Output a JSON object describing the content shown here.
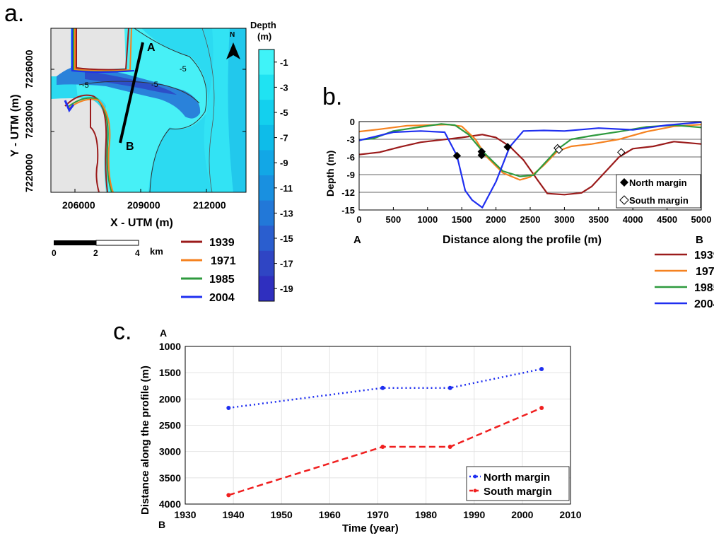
{
  "panel_labels": {
    "a": "a.",
    "b": "b.",
    "c": "c."
  },
  "map": {
    "xlabel": "X - UTM (m)",
    "ylabel": "Y - UTM (m)",
    "xticks": [
      "206000",
      "209000",
      "212000"
    ],
    "yticks": [
      "7226000",
      "7223000",
      "7220000"
    ],
    "profile_start": "A",
    "profile_end": "B",
    "contour_labels": [
      "-5",
      "-5",
      "-5"
    ],
    "north_arrow": "N",
    "colorbar_title": [
      "Depth",
      "(m)"
    ],
    "colorbar_ticks": [
      "-1",
      "-3",
      "-5",
      "-7",
      "-9",
      "-11",
      "-13",
      "-15",
      "-17",
      "-19"
    ],
    "colorbar_colors": [
      "#3ff3f8",
      "#1fe3f2",
      "#13d0ee",
      "#0ebce9",
      "#12a7e6",
      "#1990e0",
      "#2278d8",
      "#2a5ecf",
      "#2f45c4",
      "#2f2fbf"
    ],
    "scalebar": {
      "ticks": [
        "0",
        "2",
        "4"
      ],
      "unit": "km"
    },
    "land_color": "#e5e5e5",
    "sea_color": "#2cdaf1"
  },
  "legend_years": [
    "1939",
    "1971",
    "1985",
    "2004"
  ],
  "series_colors": {
    "1939": "#9b1b1b",
    "1971": "#f58220",
    "1985": "#2e9a3e",
    "2004": "#1f2ff0"
  },
  "chart_data": [
    {
      "id": "b",
      "type": "line",
      "xlabel": "Distance along the profile (m)",
      "ylabel": "Depth (m)",
      "xlim": [
        0,
        5000
      ],
      "ylim": [
        -15,
        0
      ],
      "xticks": [
        0,
        500,
        1000,
        1500,
        2000,
        2500,
        3000,
        3500,
        4000,
        4500,
        5000
      ],
      "yticks": [
        0,
        -3,
        -6,
        -9,
        -12,
        -15
      ],
      "grid": "horizontal",
      "end_labels": [
        "A",
        "B"
      ],
      "series": [
        {
          "name": "1939",
          "color": "#9b1b1b",
          "x": [
            0,
            300,
            600,
            900,
            1200,
            1500,
            1800,
            2000,
            2200,
            2400,
            2600,
            2750,
            3000,
            3250,
            3400,
            3600,
            3800,
            4000,
            4300,
            4600,
            5000
          ],
          "y": [
            -5.6,
            -5.2,
            -4.3,
            -3.5,
            -3.1,
            -2.7,
            -2.2,
            -2.7,
            -4.2,
            -6.5,
            -9.8,
            -12.2,
            -12.4,
            -12.1,
            -11.0,
            -8.5,
            -6.0,
            -4.6,
            -4.2,
            -3.4,
            -3.8
          ]
        },
        {
          "name": "1971",
          "color": "#f58220",
          "x": [
            0,
            300,
            700,
            1000,
            1300,
            1500,
            1700,
            1850,
            2100,
            2350,
            2500,
            2700,
            2900,
            3100,
            3400,
            3800,
            4200,
            4600,
            5000
          ],
          "y": [
            -1.7,
            -1.3,
            -0.7,
            -0.6,
            -0.5,
            -0.8,
            -3.0,
            -5.8,
            -8.7,
            -9.9,
            -9.4,
            -7.4,
            -5.0,
            -4.2,
            -3.8,
            -3.0,
            -1.7,
            -0.8,
            -0.5
          ]
        },
        {
          "name": "1985",
          "color": "#2e9a3e",
          "x": [
            0,
            200,
            500,
            900,
            1200,
            1400,
            1600,
            1800,
            2100,
            2350,
            2550,
            2700,
            2900,
            3100,
            3400,
            3800,
            4200,
            4600,
            5000
          ],
          "y": [
            -3.1,
            -2.9,
            -1.6,
            -0.9,
            -0.4,
            -0.6,
            -2.2,
            -5.0,
            -8.4,
            -9.3,
            -9.1,
            -7.2,
            -4.7,
            -3.0,
            -2.4,
            -1.7,
            -0.9,
            -0.6,
            -1.0
          ]
        },
        {
          "name": "2004",
          "color": "#1f2ff0",
          "x": [
            0,
            250,
            500,
            900,
            1250,
            1430,
            1550,
            1650,
            1800,
            2000,
            2200,
            2400,
            2700,
            3000,
            3500,
            4000,
            4500,
            5000
          ],
          "y": [
            -3.2,
            -2.5,
            -1.8,
            -1.6,
            -1.8,
            -5.8,
            -11.7,
            -13.3,
            -14.6,
            -10.2,
            -4.3,
            -1.6,
            -1.5,
            -1.6,
            -1.1,
            -1.4,
            -0.6,
            -0.1
          ]
        }
      ],
      "margins": [
        {
          "name": "North margin",
          "symbol": "filled-diamond",
          "points": [
            {
              "x": 1430,
              "y": -5.8
            },
            {
              "x": 1790,
              "y": -5.1
            },
            {
              "x": 1790,
              "y": -5.7
            },
            {
              "x": 2170,
              "y": -4.3
            }
          ]
        },
        {
          "name": "South margin",
          "symbol": "open-diamond",
          "points": [
            {
              "x": 2900,
              "y": -4.5
            },
            {
              "x": 2920,
              "y": -4.8
            },
            {
              "x": 3830,
              "y": -5.2
            }
          ]
        }
      ]
    },
    {
      "id": "c",
      "type": "line",
      "xlabel": "Time (year)",
      "ylabel": "Distance along the profile (m)",
      "xlim": [
        1930,
        2010
      ],
      "ylim": [
        4000,
        1000
      ],
      "xticks": [
        1930,
        1940,
        1950,
        1960,
        1970,
        1980,
        1990,
        2000,
        2010
      ],
      "yticks": [
        1000,
        1500,
        2000,
        2500,
        3000,
        3500,
        4000
      ],
      "grid": "both",
      "legend": "bottom-right",
      "axis_end_labels": [
        "A",
        "B"
      ],
      "series": [
        {
          "name": "North margin",
          "color": "#1f2ff0",
          "style": "dotted",
          "x": [
            1939,
            1971,
            1985,
            2004
          ],
          "y": [
            2170,
            1790,
            1790,
            1430
          ]
        },
        {
          "name": "South margin",
          "color": "#f01f1f",
          "style": "dashed",
          "x": [
            1939,
            1971,
            1985,
            2004
          ],
          "y": [
            3830,
            2910,
            2910,
            2170
          ]
        }
      ]
    }
  ]
}
